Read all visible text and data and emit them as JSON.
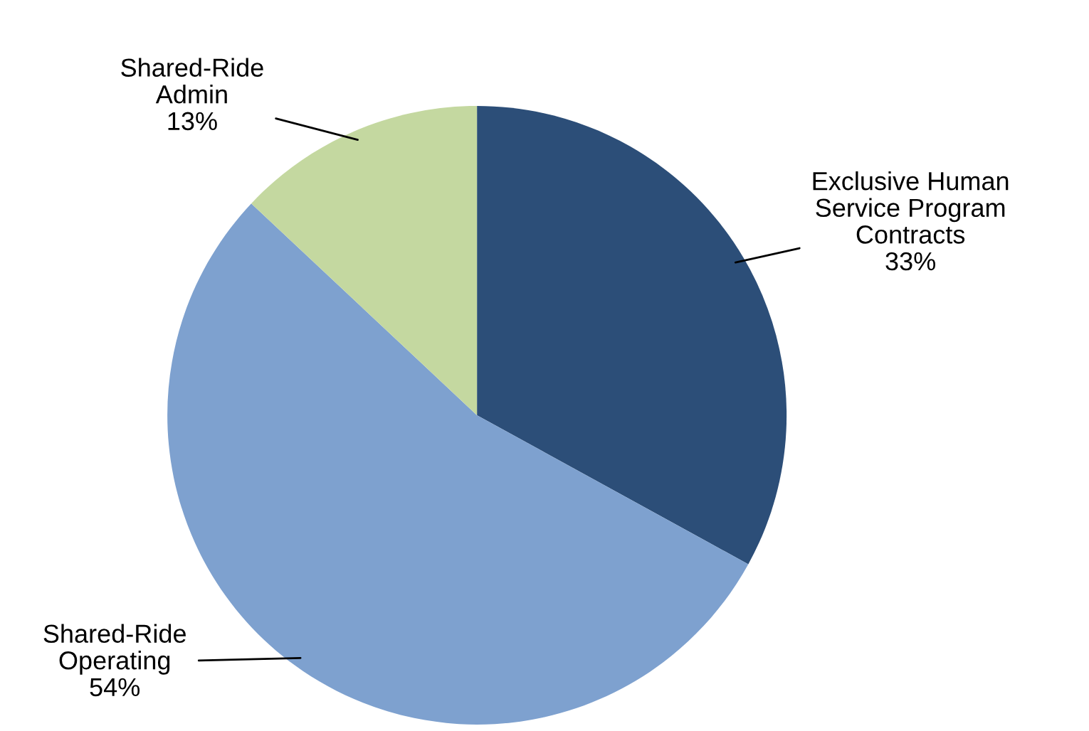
{
  "chart_data": {
    "type": "pie",
    "categories": [
      "Exclusive Human\nService Program\nContracts",
      "Shared-Ride\nOperating",
      "Shared-Ride\nAdmin"
    ],
    "values": [
      33,
      54,
      13
    ],
    "value_labels": [
      "33%",
      "54%",
      "13%"
    ],
    "colors": [
      "#2c4e78",
      "#7ea1cf",
      "#c4d8a0"
    ],
    "legend": false
  }
}
